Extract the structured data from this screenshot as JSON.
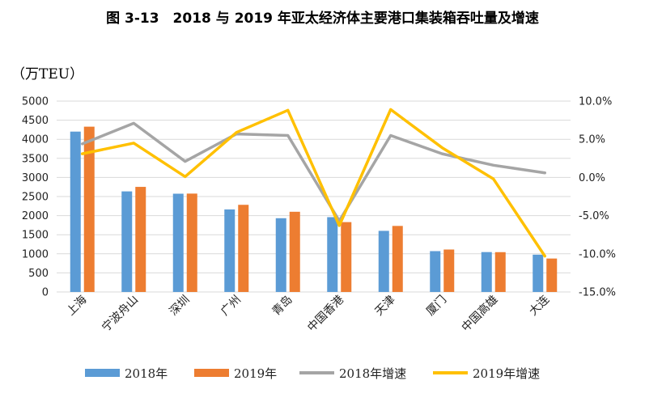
{
  "chart_data": {
    "type": "bar",
    "title": "图 3-13　2018 与 2019 年亚太经济体主要港口集装箱吞吐量及增速",
    "ylabel": "（万TEU）",
    "categories": [
      "上海",
      "宁波舟山",
      "深圳",
      "广州",
      "青岛",
      "中国香港",
      "天津",
      "厦门",
      "中国高雄",
      "大连"
    ],
    "ylim": [
      0,
      5000
    ],
    "yticks": [
      0,
      500,
      1000,
      1500,
      2000,
      2500,
      3000,
      3500,
      4000,
      4500,
      5000
    ],
    "y2lim": [
      -15,
      10
    ],
    "y2ticks": [
      "-15.0%",
      "-10.0%",
      "-5.0%",
      "0.0%",
      "5.0%",
      "10.0%"
    ],
    "y2tick_values": [
      -15,
      -10,
      -5,
      0,
      5,
      10
    ],
    "series": [
      {
        "name": "2018年",
        "type": "bar",
        "color": "#5b9bd5",
        "values": [
          4201,
          2635,
          2574,
          2162,
          1932,
          1960,
          1601,
          1070,
          1045,
          977
        ]
      },
      {
        "name": "2019年",
        "type": "bar",
        "color": "#ed7d31",
        "values": [
          4330,
          2753,
          2577,
          2283,
          2101,
          1830,
          1730,
          1112,
          1043,
          876
        ]
      },
      {
        "name": "2018年增速",
        "type": "line",
        "axis": "right",
        "color": "#a5a5a5",
        "values": [
          4.4,
          7.1,
          2.1,
          5.7,
          5.5,
          -5.7,
          5.5,
          3.1,
          1.6,
          0.6
        ]
      },
      {
        "name": "2019年增速",
        "type": "line",
        "axis": "right",
        "color": "#ffc000",
        "values": [
          3.1,
          4.5,
          0.1,
          5.9,
          8.8,
          -6.3,
          8.9,
          3.9,
          -0.2,
          -10.3
        ]
      }
    ]
  }
}
